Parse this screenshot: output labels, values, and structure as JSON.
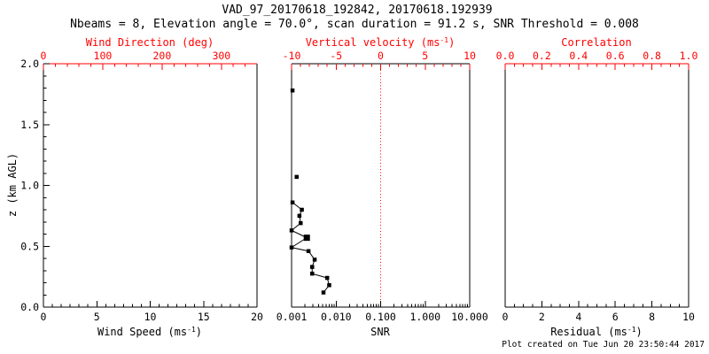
{
  "header": {
    "title": "VAD_97_20170618_192842, 20170618.192939",
    "subtitle": "Nbeams = 8, Elevation angle = 70.0°, scan duration = 91.2 s, SNR Threshold = 0.008"
  },
  "footer": {
    "created": "Plot created on Tue Jun 20 23:50:44 2017"
  },
  "colors": {
    "axis_red": "#ff0000",
    "axis_black": "#000000",
    "background": "#ffffff"
  },
  "chart_data": [
    {
      "name": "wind-panel",
      "type": "scatter",
      "bottom_axis": {
        "label_pre": "Wind Speed (ms",
        "label_sup": "-1",
        "label_post": ")",
        "range": [
          0,
          20
        ],
        "tick_values": [
          0,
          5,
          10,
          15,
          20
        ],
        "tick_labels": [
          "0",
          "5",
          "10",
          "15",
          "20"
        ],
        "minor_div": 6
      },
      "top_axis": {
        "label_pre": "Wind Direction (deg)",
        "label_sup": "",
        "label_post": "",
        "range": [
          0,
          360
        ],
        "tick_values": [
          0,
          100,
          200,
          300
        ],
        "tick_labels": [
          "0",
          "100",
          "200",
          "300"
        ],
        "minor_div": 5,
        "line_red": true
      },
      "y_axis": {
        "label": "z (km AGL)",
        "range": [
          0,
          2
        ],
        "tick_values": [
          0,
          0.5,
          1,
          1.5,
          2
        ],
        "tick_labels": [
          "0.0",
          "0.5",
          "1.0",
          "1.5",
          "2.0"
        ],
        "minor_div": 5,
        "show_labels": true
      },
      "series": []
    },
    {
      "name": "snr-panel",
      "type": "line-scatter",
      "bottom_axis": {
        "label_pre": "SNR",
        "label_sup": "",
        "label_post": "",
        "range": [
          0.001,
          10
        ],
        "log": true,
        "tick_values": [
          0.001,
          0.01,
          0.1,
          1,
          10
        ],
        "tick_labels": [
          "0.001",
          "0.010",
          "0.100",
          "1.000",
          "10.000"
        ]
      },
      "top_axis": {
        "label_pre": "Vertical velocity (ms",
        "label_sup": "-1",
        "label_post": ")",
        "range": [
          -10,
          10
        ],
        "tick_values": [
          -10,
          -5,
          0,
          5,
          10
        ],
        "tick_labels": [
          "-10",
          "-5",
          "0",
          "5",
          "10"
        ],
        "minor_div": 5,
        "line_red": false
      },
      "y_axis": {
        "range": [
          0,
          2
        ],
        "show_labels": false
      },
      "refline": {
        "value": 0,
        "axis": "top",
        "color": "#ff0000",
        "style": "dotted"
      },
      "series": [
        {
          "name": "snr-profile",
          "marker": "square",
          "connected": true,
          "points": [
            {
              "z": 0.86,
              "snr": 0.00105
            },
            {
              "z": 0.8,
              "snr": 0.0017
            },
            {
              "z": 0.75,
              "snr": 0.0015
            },
            {
              "z": 0.69,
              "snr": 0.0016
            },
            {
              "z": 0.63,
              "snr": 0.001
            },
            {
              "z": 0.57,
              "snr": 0.0022,
              "big": true
            },
            {
              "z": 0.49,
              "snr": 0.001
            },
            {
              "z": 0.46,
              "snr": 0.0024
            },
            {
              "z": 0.39,
              "snr": 0.0033
            },
            {
              "z": 0.33,
              "snr": 0.0029
            },
            {
              "z": 0.275,
              "snr": 0.0029
            },
            {
              "z": 0.24,
              "snr": 0.0063
            },
            {
              "z": 0.18,
              "snr": 0.007
            },
            {
              "z": 0.12,
              "snr": 0.0052
            }
          ]
        }
      ],
      "isolated_points": [
        {
          "z": 1.07,
          "snr": 0.0013
        },
        {
          "z": 1.78,
          "snr": 0.00105
        }
      ]
    },
    {
      "name": "residual-panel",
      "type": "scatter",
      "bottom_axis": {
        "label_pre": "Residual (ms",
        "label_sup": "-1",
        "label_post": ")",
        "range": [
          0,
          10
        ],
        "tick_values": [
          0,
          2,
          4,
          6,
          8,
          10
        ],
        "tick_labels": [
          "0",
          "2",
          "4",
          "6",
          "8",
          "10"
        ],
        "minor_div": 4
      },
      "top_axis": {
        "label_pre": "Correlation",
        "label_sup": "",
        "label_post": "",
        "range": [
          0,
          1
        ],
        "tick_values": [
          0,
          0.2,
          0.4,
          0.6,
          0.8,
          1
        ],
        "tick_labels": [
          "0.0",
          "0.2",
          "0.4",
          "0.6",
          "0.8",
          "1.0"
        ],
        "minor_div": 4,
        "line_red": true
      },
      "y_axis": {
        "range": [
          0,
          2
        ],
        "show_labels": false
      },
      "series": []
    }
  ]
}
